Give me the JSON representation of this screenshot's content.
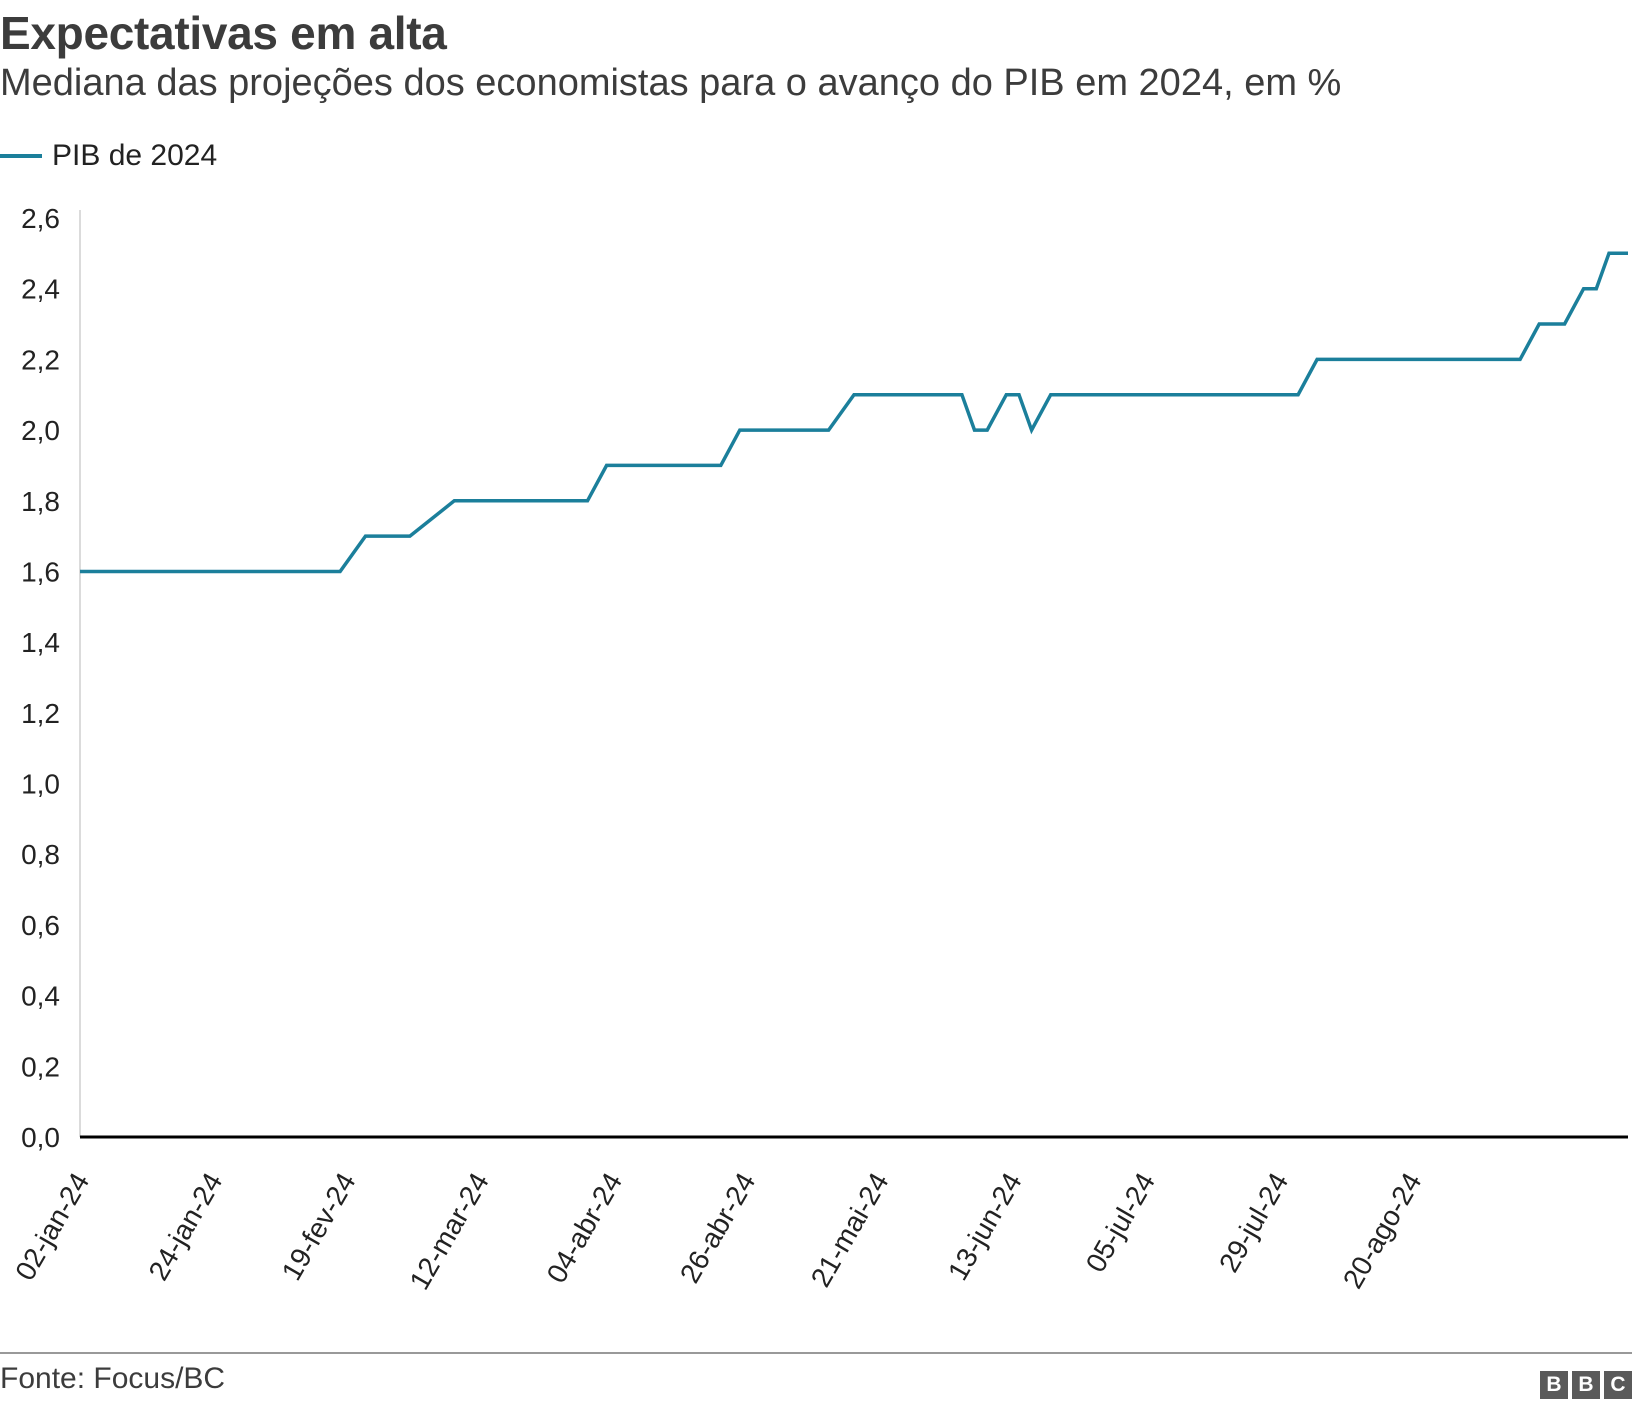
{
  "header": {
    "title": "Expectativas em alta",
    "subtitle": "Mediana das projeções dos economistas para o avanço do PIB em 2024, em %"
  },
  "footer": {
    "source": "Fonte: Focus/BC",
    "logo_letters": [
      "B",
      "B",
      "C"
    ]
  },
  "colors": {
    "series": "#1b7f9b",
    "axis": "#000000",
    "text": "#222222"
  },
  "chart_data": {
    "type": "line",
    "title": "Expectativas em alta",
    "subtitle": "Mediana das projeções dos economistas para o avanço do PIB em 2024, em %",
    "ylim": [
      0,
      2.6
    ],
    "y_ticks": [
      "0,0",
      "0,2",
      "0,4",
      "0,6",
      "0,8",
      "1,0",
      "1,2",
      "1,4",
      "1,6",
      "1,8",
      "2,0",
      "2,2",
      "2,4",
      "2,6"
    ],
    "x_ticks": [
      "02-jan-24",
      "24-jan-24",
      "19-fev-24",
      "12-mar-24",
      "04-abr-24",
      "26-abr-24",
      "21-mai-24",
      "13-jun-24",
      "05-jul-24",
      "29-jul-24",
      "20-ago-24"
    ],
    "legend_position": "top-left",
    "grid": false,
    "series": [
      {
        "name": "PIB de 2024",
        "points": [
          [
            "2024-01-02",
            1.6
          ],
          [
            "2024-02-12",
            1.6
          ],
          [
            "2024-02-16",
            1.7
          ],
          [
            "2024-02-23",
            1.7
          ],
          [
            "2024-03-01",
            1.8
          ],
          [
            "2024-03-22",
            1.8
          ],
          [
            "2024-03-25",
            1.9
          ],
          [
            "2024-04-12",
            1.9
          ],
          [
            "2024-04-15",
            2.0
          ],
          [
            "2024-04-29",
            2.0
          ],
          [
            "2024-05-03",
            2.1
          ],
          [
            "2024-05-20",
            2.1
          ],
          [
            "2024-05-22",
            2.0
          ],
          [
            "2024-05-24",
            2.0
          ],
          [
            "2024-05-27",
            2.1
          ],
          [
            "2024-05-29",
            2.1
          ],
          [
            "2024-05-31",
            2.0
          ],
          [
            "2024-06-03",
            2.1
          ],
          [
            "2024-07-12",
            2.1
          ],
          [
            "2024-07-15",
            2.2
          ],
          [
            "2024-08-16",
            2.2
          ],
          [
            "2024-08-19",
            2.3
          ],
          [
            "2024-08-23",
            2.3
          ],
          [
            "2024-08-26",
            2.4
          ],
          [
            "2024-08-28",
            2.4
          ],
          [
            "2024-08-30",
            2.5
          ],
          [
            "2024-09-02",
            2.5
          ]
        ]
      }
    ]
  }
}
